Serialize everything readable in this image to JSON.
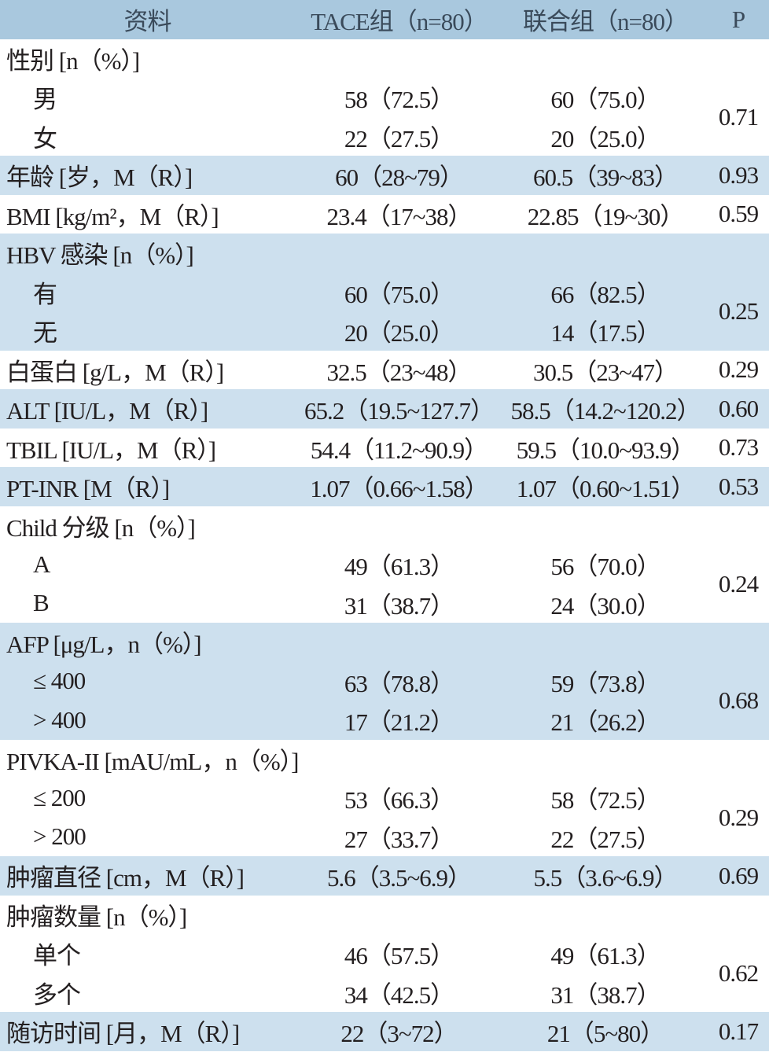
{
  "table": {
    "header": [
      "资料",
      "TACE组（n=80）",
      "联合组（n=80）",
      "P"
    ],
    "rows": [
      [
        "性别 [n（%）]"
      ],
      [
        "男",
        "58（72.5）",
        "60（75.0）",
        "0.71"
      ],
      [
        "女",
        "22（27.5）",
        "20（25.0）"
      ],
      [
        "年龄 [岁，M（R）]",
        "60（28~79）",
        "60.5（39~83）",
        "0.93"
      ],
      [
        "BMI [kg/m²，M（R）]",
        "23.4（17~38）",
        "22.85（19~30）",
        "0.59"
      ],
      [
        "HBV 感染 [n（%）]"
      ],
      [
        "有",
        "60（75.0）",
        "66（82.5）",
        "0.25"
      ],
      [
        "无",
        "20（25.0）",
        "14（17.5）"
      ],
      [
        "白蛋白 [g/L，M（R）]",
        "32.5（23~48）",
        "30.5（23~47）",
        "0.29"
      ],
      [
        "ALT [IU/L，M（R）]",
        "65.2（19.5~127.7）",
        "58.5（14.2~120.2）",
        "0.60"
      ],
      [
        "TBIL [IU/L，M（R）]",
        "54.4（11.2~90.9）",
        "59.5（10.0~93.9）",
        "0.73"
      ],
      [
        "PT-INR [M（R）]",
        "1.07（0.66~1.58）",
        "1.07（0.60~1.51）",
        "0.53"
      ],
      [
        "Child 分级 [n（%）]"
      ],
      [
        "A",
        "49（61.3）",
        "56（70.0）",
        "0.24"
      ],
      [
        "B",
        "31（38.7）",
        "24（30.0）"
      ],
      [
        "AFP [μg/L，n（%）]"
      ],
      [
        "≤ 400",
        "63（78.8）",
        "59（73.8）",
        "0.68"
      ],
      [
        "> 400",
        "17（21.2）",
        "21（26.2）"
      ],
      [
        "PIVKA-II [mAU/mL，n（%）]"
      ],
      [
        "≤ 200",
        "53（66.3）",
        "58（72.5）",
        "0.29"
      ],
      [
        "> 200",
        "27（33.7）",
        "22（27.5）"
      ],
      [
        "肿瘤直径 [cm，M（R）]",
        "5.6（3.5~6.9）",
        "5.5（3.6~6.9）",
        "0.69"
      ],
      [
        "肿瘤数量 [n（%）]"
      ],
      [
        "单个",
        "46（57.5）",
        "49（61.3）",
        "0.62"
      ],
      [
        "多个",
        "34（42.5）",
        "31（38.7）"
      ],
      [
        "随访时间 [月，M（R）]",
        "22（3~72）",
        "21（5~80）",
        "0.17"
      ]
    ]
  }
}
